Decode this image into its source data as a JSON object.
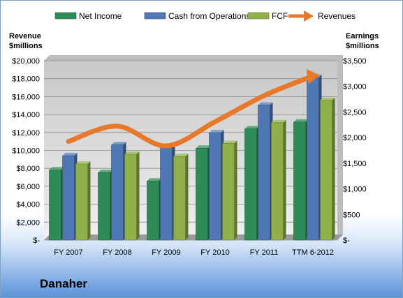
{
  "company": "Danaher",
  "chart_data": {
    "type": "bar",
    "categories": [
      "FY 2007",
      "FY 2008",
      "FY 2009",
      "FY 2010",
      "FY 2011",
      "TTM 6-2012"
    ],
    "series": [
      {
        "name": "Net Income",
        "axis": "right",
        "color": "#2e8b57",
        "values": [
          1370,
          1318,
          1152,
          1793,
          2172,
          2303
        ]
      },
      {
        "name": "Cash from Operations",
        "axis": "right",
        "color": "#4f77b3",
        "values": [
          1646,
          1859,
          1802,
          2092,
          2634,
          3175
        ]
      },
      {
        "name": "FCF",
        "axis": "right",
        "color": "#8fb04a",
        "values": [
          1483,
          1674,
          1630,
          1886,
          2290,
          2727
        ]
      }
    ],
    "line_series": {
      "name": "Revenues",
      "axis": "left",
      "color": "#e8782a",
      "values": [
        11000,
        12700,
        10500,
        13200,
        16100,
        18300
      ]
    },
    "left_axis": {
      "label_line1": "Revenue",
      "label_line2": "$millions",
      "min": 0,
      "max": 20000,
      "step": 2000,
      "ticks": [
        "$-",
        "$2,000",
        "$4,000",
        "$6,000",
        "$8,000",
        "$10,000",
        "$12,000",
        "$14,000",
        "$16,000",
        "$18,000",
        "$20,000"
      ]
    },
    "right_axis": {
      "label_line1": "Earnings",
      "label_line2": "$millions",
      "min": 0,
      "max": 3500,
      "step": 500,
      "ticks": [
        "$-",
        "$500",
        "$1,000",
        "$1,500",
        "$2,000",
        "$2,500",
        "$3,000",
        "$3,500"
      ]
    },
    "legend": [
      "Net Income",
      "Cash from Operations",
      "FCF",
      "Revenues"
    ],
    "legend_position": "top",
    "grid": true
  }
}
